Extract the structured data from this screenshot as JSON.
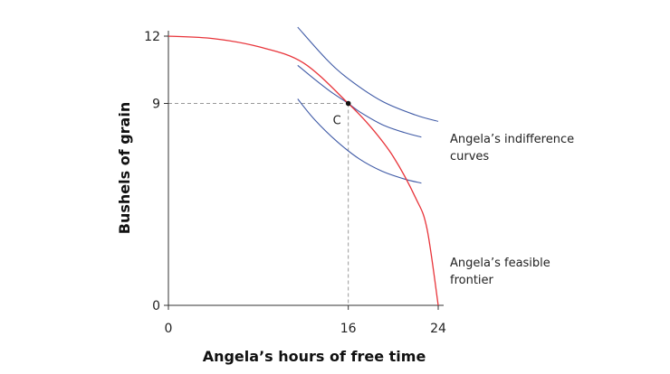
{
  "chart_data": {
    "type": "line",
    "title": "",
    "xlabel": "Angela’s hours of free time",
    "ylabel": "Bushels of grain",
    "xlim": [
      0,
      24
    ],
    "ylim": [
      0,
      12
    ],
    "x_ticks": [
      "0",
      "16",
      "24"
    ],
    "y_ticks": [
      "0",
      "9",
      "12"
    ],
    "grid": false,
    "colors": {
      "frontier": "#e8343a",
      "indifference": "#3f5aa6",
      "guide": "#999999",
      "point": "#111111"
    },
    "frontier": {
      "x": [
        0,
        4,
        8,
        12,
        16,
        18,
        20,
        22,
        23,
        24
      ],
      "y": [
        12,
        11.89,
        11.53,
        10.81,
        9,
        7.95,
        6.63,
        4.78,
        3.42,
        0
      ]
    },
    "indifference_curves": [
      {
        "x": [
          11.5,
          14,
          16,
          19,
          22,
          24
        ],
        "y": [
          12.4,
          11,
          10.1,
          9.1,
          8.48,
          8.2
        ]
      },
      {
        "x": [
          11.5,
          13,
          14.5,
          16,
          17,
          19,
          21,
          22.5
        ],
        "y": [
          10.7,
          10.08,
          9.5,
          9,
          8.63,
          8.06,
          7.7,
          7.5
        ]
      },
      {
        "x": [
          11.5,
          13,
          15,
          17,
          19,
          21,
          22.5
        ],
        "y": [
          9.2,
          8.28,
          7.3,
          6.52,
          5.98,
          5.63,
          5.45
        ]
      }
    ],
    "point": {
      "label": "C",
      "x": 16,
      "y": 9
    },
    "annotations": {
      "indifference_label": [
        "Angela’s indifference",
        "curves"
      ],
      "frontier_label": [
        "Angela’s feasible",
        "frontier"
      ]
    }
  }
}
